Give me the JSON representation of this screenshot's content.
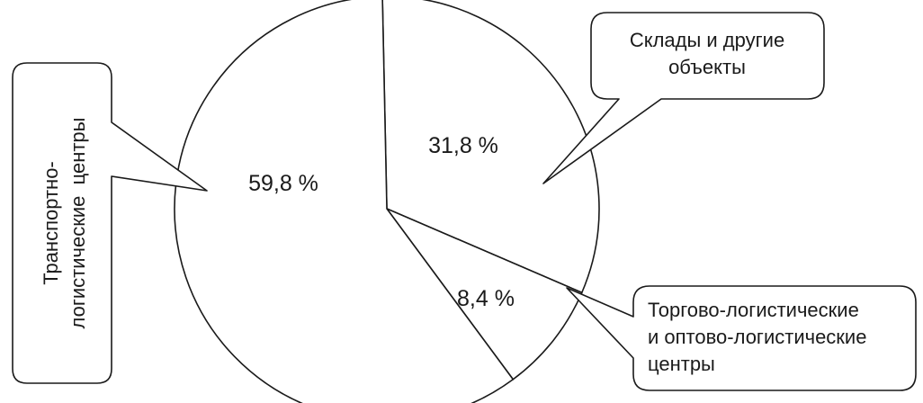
{
  "chart_data": {
    "type": "pie",
    "title": "",
    "slices": [
      {
        "label": "Склады и другие объекты",
        "value": 31.8,
        "value_text": "31,8 %",
        "label_lines": [
          "Склады и другие",
          "объекты"
        ]
      },
      {
        "label": "Торгово-логистические и оптово-логистические центры",
        "value": 8.4,
        "value_text": "8,4 %",
        "label_lines": [
          "Торгово-логистические",
          "и оптово-логистические",
          "центры"
        ]
      },
      {
        "label": "Транспортно-логистические центры",
        "value": 59.8,
        "value_text": "59,8 %",
        "label_lines": [
          "Транспортно-",
          "логистические  центры"
        ]
      }
    ],
    "colors": {
      "line": "#1a1a1a",
      "fill": "#ffffff"
    },
    "legend": "callouts"
  }
}
